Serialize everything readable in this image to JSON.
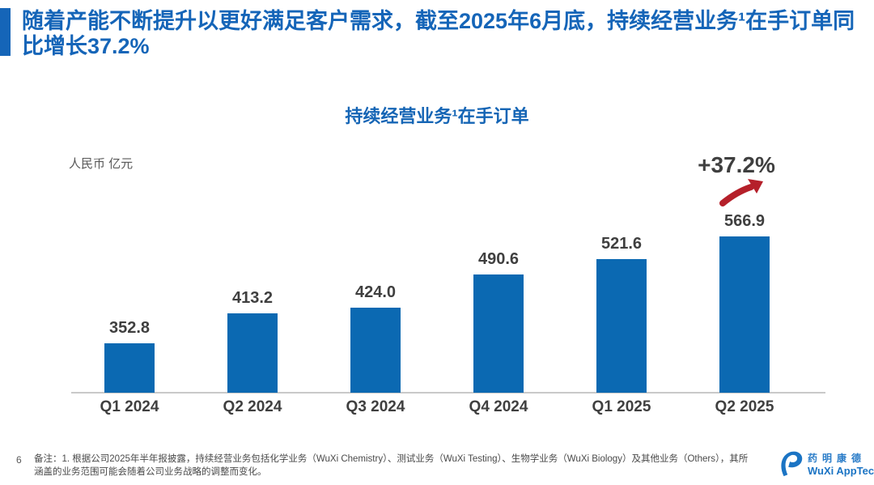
{
  "banner": {
    "title_lines": [
      "随着产能不断提升以更好满足客户需求，截至2025年6月底，持续经营业务¹在手订单同",
      "比增长37.2%"
    ]
  },
  "chart": {
    "title": "持续经营业务¹在手订单",
    "unit_label": "人民币 亿元",
    "growth_label": "+37.2%"
  },
  "chart_data": {
    "type": "bar",
    "title": "持续经营业务¹在手订单",
    "categories": [
      "Q1 2024",
      "Q2 2024",
      "Q3 2024",
      "Q4 2024",
      "Q1 2025",
      "Q2 2025"
    ],
    "values": [
      352.8,
      413.2,
      424.0,
      490.6,
      521.6,
      566.9
    ],
    "xlabel": "",
    "ylabel": "人民币 亿元",
    "ylim": [
      254,
      600
    ],
    "grid": false,
    "legend_position": "none",
    "value_labels": true,
    "value_label_decimals": 1,
    "bar_color": "#0b69b2",
    "annotations": [
      {
        "text": "+37.2%",
        "target_category": "Q2 2025",
        "arrow": "red-curved-up-right"
      }
    ]
  },
  "footer": {
    "page_number": "6",
    "note_lines": [
      "备注：1. 根据公司2025年半年报披露，持续经营业务包括化学业务（WuXi Chemistry）、测试业务（WuXi Testing）、生物学业务（WuXi Biology）及其他业务（Others），其所",
      "涵盖的业务范围可能会随着公司业务战略的调整而变化。"
    ],
    "logo": {
      "cn_name": "药明康德",
      "en_name": "WuXi AppTec"
    }
  },
  "colors": {
    "banner_text": "#1565b8",
    "accent_bar": "#1565b8",
    "chart_title": "#1565b5",
    "bar": "#0b69b2",
    "label": "#3f3f3f",
    "arrow_red": "#b5202a",
    "axis_line": "#c9c9c9",
    "logo_blue": "#1b74c4"
  }
}
